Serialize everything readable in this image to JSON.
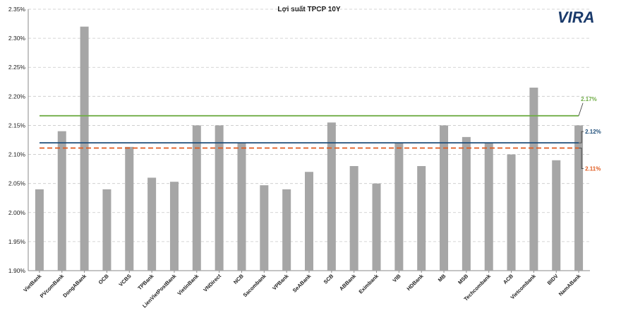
{
  "chart_data": {
    "type": "bar",
    "title": "Lợi suất TPCP 10Y",
    "xlabel": "",
    "ylabel": "",
    "ylim": [
      1.9,
      2.35
    ],
    "y_ticks": [
      "1.90%",
      "1.95%",
      "2.00%",
      "2.05%",
      "2.10%",
      "2.15%",
      "2.20%",
      "2.25%",
      "2.30%",
      "2.35%"
    ],
    "y_tick_values": [
      1.9,
      1.95,
      2.0,
      2.05,
      2.1,
      2.15,
      2.2,
      2.25,
      2.3,
      2.35
    ],
    "grid": true,
    "bar_color": "#a6a6a6",
    "categories": [
      "VietBank",
      "PVcomBank",
      "DongABank",
      "OCB",
      "VCBS",
      "TPBank",
      "LienVietPostBank",
      "VietinBank",
      "VNDirect",
      "NCB",
      "Sacombank",
      "VPBank",
      "SeABank",
      "SCB",
      "ABBank",
      "Eximbank",
      "VIB",
      "HDBank",
      "MB",
      "MSB",
      "Techcombank",
      "ACB",
      "Vietcombank",
      "BIDV",
      "NamABank"
    ],
    "values": [
      2.04,
      2.14,
      2.32,
      2.04,
      2.113,
      2.06,
      2.053,
      2.15,
      2.15,
      2.12,
      2.047,
      2.04,
      2.07,
      2.155,
      2.08,
      2.05,
      2.12,
      2.08,
      2.15,
      2.13,
      2.12,
      2.1,
      2.215,
      2.09,
      2.15
    ],
    "reference_lines": [
      {
        "value": 2.1666,
        "label": "2.17%",
        "color": "#70ad47",
        "style": "solid"
      },
      {
        "value": 2.12,
        "label": "2.12%",
        "color": "#1f4e79",
        "style": "solid"
      },
      {
        "value": 2.111,
        "label": "2.11%",
        "color": "#e05a1e",
        "style": "dashed"
      }
    ]
  },
  "logo": {
    "text": "VIRA",
    "color": "#1a3a6b"
  }
}
